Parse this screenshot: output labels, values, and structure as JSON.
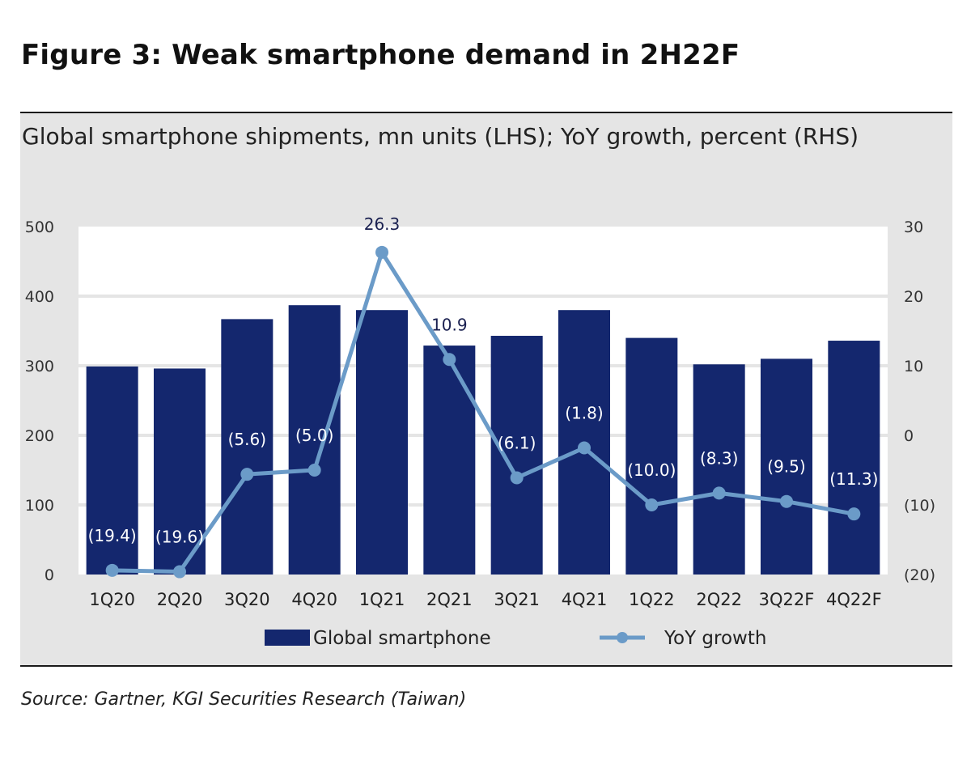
{
  "figure_title": "Figure 3: Weak smartphone demand in 2H22F",
  "source": "Source: Gartner, KGI Securities Research (Taiwan)",
  "colors": {
    "bar": "#14276e",
    "line": "#6b9bc8",
    "panel": "#e5e5e5",
    "plot": "#ffffff",
    "grid": "#e5e5e5"
  },
  "chart_data": {
    "type": "bar",
    "title": "Global smartphone shipments, mn units (LHS); YoY growth, percent (RHS)",
    "categories": [
      "1Q20",
      "2Q20",
      "3Q20",
      "4Q20",
      "1Q21",
      "2Q21",
      "3Q21",
      "4Q21",
      "1Q22",
      "2Q22",
      "3Q22F",
      "4Q22F"
    ],
    "series": [
      {
        "name": "Global smartphone",
        "type": "bar",
        "axis": "left",
        "values": [
          299,
          296,
          367,
          387,
          380,
          329,
          343,
          380,
          340,
          302,
          310,
          336
        ]
      },
      {
        "name": "YoY growth",
        "type": "line",
        "axis": "right",
        "values": [
          -19.4,
          -19.6,
          -5.6,
          -5.0,
          26.3,
          10.9,
          -6.1,
          -1.8,
          -10.0,
          -8.3,
          -9.5,
          -11.3
        ],
        "labels": [
          "(19.4)",
          "(19.6)",
          "(5.6)",
          "(5.0)",
          "26.3",
          "10.9",
          "(6.1)",
          "(1.8)",
          "(10.0)",
          "(8.3)",
          "(9.5)",
          "(11.3)"
        ]
      }
    ],
    "y_left": {
      "min": 0,
      "max": 500,
      "ticks": [
        0,
        100,
        200,
        300,
        400,
        500
      ],
      "tick_labels": [
        "0",
        "100",
        "200",
        "300",
        "400",
        "500"
      ]
    },
    "y_right": {
      "min": -20,
      "max": 30,
      "ticks": [
        -20,
        -10,
        0,
        10,
        20,
        30
      ],
      "tick_labels": [
        "(20)",
        "(10)",
        "0",
        "10",
        "20",
        "30"
      ]
    },
    "legend": {
      "position": "bottom",
      "items": [
        "Global smartphone",
        "YoY growth"
      ]
    },
    "grid": true
  }
}
